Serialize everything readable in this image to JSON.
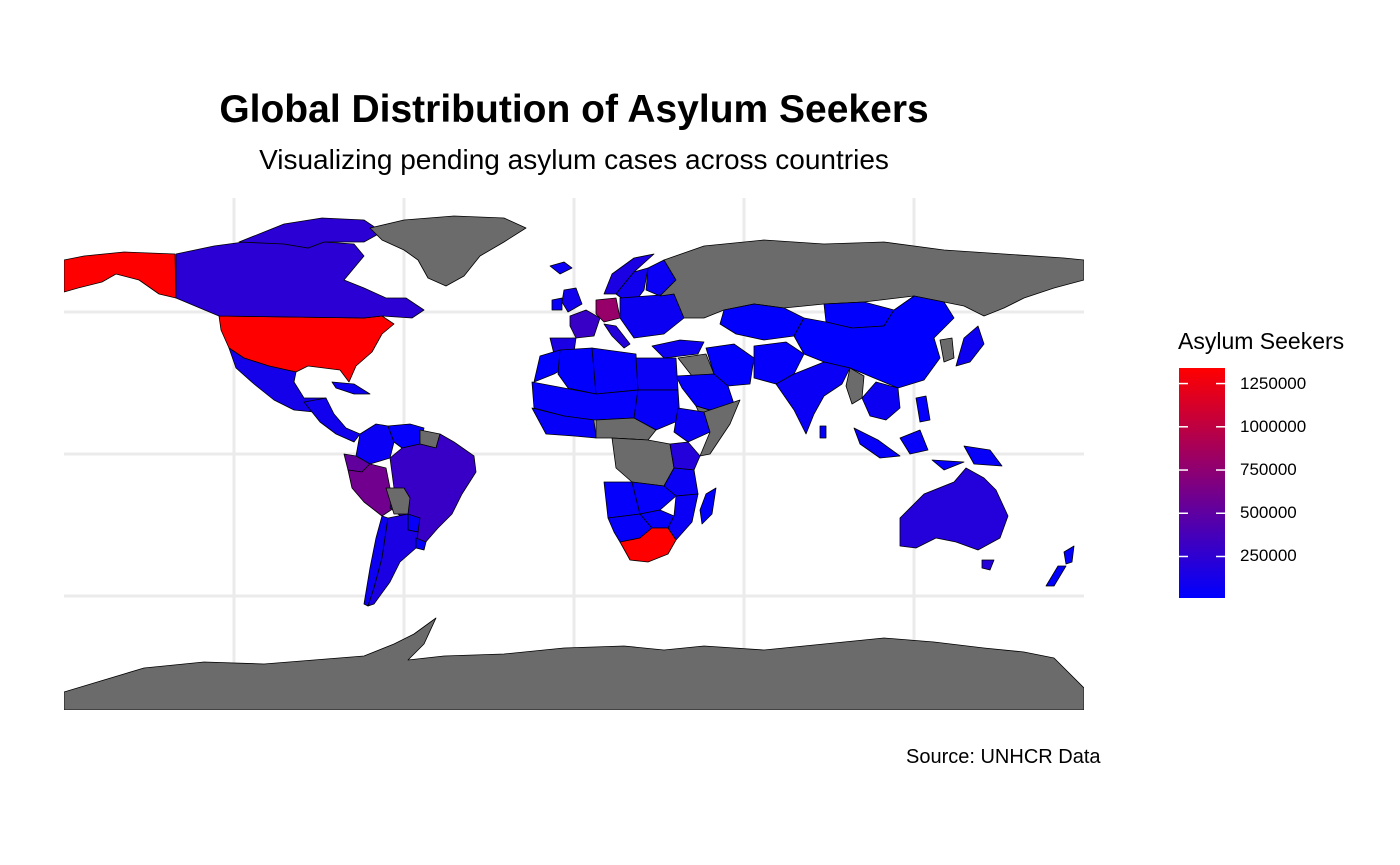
{
  "title": "Global Distribution of Asylum Seekers",
  "subtitle": "Visualizing pending asylum cases across countries",
  "caption": "Source: UNHCR Data",
  "legend": {
    "title": "Asylum Seekers",
    "ticks": [
      {
        "value": 1250000,
        "label": "1250000"
      },
      {
        "value": 1000000,
        "label": "1000000"
      },
      {
        "value": 750000,
        "label": "750000"
      },
      {
        "value": 500000,
        "label": "500000"
      },
      {
        "value": 250000,
        "label": "250000"
      }
    ],
    "range": [
      10000,
      1340000
    ],
    "low_color": "#0000ff",
    "high_color": "#ff0000",
    "na_color": "#6b6b6b"
  },
  "chart_data": {
    "type": "choropleth",
    "projection": "equirectangular",
    "lon_range": [
      -180,
      180
    ],
    "lat_range": [
      -90,
      84
    ],
    "grid": true,
    "legend_position": "right",
    "regions": [
      {
        "name": "Alaska (United States)",
        "value": 1340000
      },
      {
        "name": "United States",
        "value": 1340000
      },
      {
        "name": "Canada",
        "value": 230000
      },
      {
        "name": "Canadian Arctic",
        "value": 230000
      },
      {
        "name": "Greenland",
        "value": null
      },
      {
        "name": "Mexico",
        "value": 120000
      },
      {
        "name": "Central America",
        "value": 100000
      },
      {
        "name": "Cuba",
        "value": 70000
      },
      {
        "name": "Colombia",
        "value": 60000
      },
      {
        "name": "Venezuela",
        "value": 30000
      },
      {
        "name": "Guyana",
        "value": null
      },
      {
        "name": "Ecuador",
        "value": 520000
      },
      {
        "name": "Peru",
        "value": 600000
      },
      {
        "name": "Brazil",
        "value": 300000
      },
      {
        "name": "Bolivia",
        "value": null
      },
      {
        "name": "Paraguay",
        "value": 40000
      },
      {
        "name": "Chile",
        "value": 80000
      },
      {
        "name": "Argentina",
        "value": 150000
      },
      {
        "name": "Uruguay",
        "value": 30000
      },
      {
        "name": "Iceland",
        "value": 60000
      },
      {
        "name": "United Kingdom",
        "value": 100000
      },
      {
        "name": "Ireland",
        "value": 40000
      },
      {
        "name": "Norway",
        "value": 150000
      },
      {
        "name": "Sweden",
        "value": 100000
      },
      {
        "name": "Finland",
        "value": 60000
      },
      {
        "name": "France",
        "value": 300000
      },
      {
        "name": "Spain",
        "value": 150000
      },
      {
        "name": "Germany",
        "value": 800000
      },
      {
        "name": "Italy",
        "value": 200000
      },
      {
        "name": "Eastern Europe",
        "value": 70000
      },
      {
        "name": "Russia",
        "value": null
      },
      {
        "name": "Turkey",
        "value": 80000
      },
      {
        "name": "Syria & Iraq",
        "value": null
      },
      {
        "name": "Iran",
        "value": 20000
      },
      {
        "name": "Saudi Arabia",
        "value": 30000
      },
      {
        "name": "Yemen",
        "value": null
      },
      {
        "name": "Kazakhstan",
        "value": 20000
      },
      {
        "name": "Mongolia",
        "value": 20000
      },
      {
        "name": "China",
        "value": 10000
      },
      {
        "name": "Afghanistan & Pakistan",
        "value": 30000
      },
      {
        "name": "India",
        "value": 60000
      },
      {
        "name": "Myanmar",
        "value": null
      },
      {
        "name": "Indochina",
        "value": 70000
      },
      {
        "name": "Korea",
        "value": null
      },
      {
        "name": "Japan",
        "value": 80000
      },
      {
        "name": "Philippines",
        "value": 30000
      },
      {
        "name": "Indonesia",
        "value": 40000
      },
      {
        "name": "New Guinea",
        "value": 40000
      },
      {
        "name": "Sri Lanka",
        "value": 30000
      },
      {
        "name": "Morocco",
        "value": 20000
      },
      {
        "name": "Algeria",
        "value": 20000
      },
      {
        "name": "Libya",
        "value": 30000
      },
      {
        "name": "Egypt",
        "value": 60000
      },
      {
        "name": "Sahel",
        "value": 30000
      },
      {
        "name": "West Africa",
        "value": 40000
      },
      {
        "name": "Sudan",
        "value": 40000
      },
      {
        "name": "Ethiopia",
        "value": 60000
      },
      {
        "name": "Somalia",
        "value": null
      },
      {
        "name": "Central African Republic",
        "value": null
      },
      {
        "name": "DR Congo",
        "value": null
      },
      {
        "name": "Kenya & Uganda",
        "value": 200000
      },
      {
        "name": "Tanzania",
        "value": 60000
      },
      {
        "name": "Angola",
        "value": 30000
      },
      {
        "name": "Zambia",
        "value": 30000
      },
      {
        "name": "Mozambique",
        "value": 60000
      },
      {
        "name": "Namibia & Botswana",
        "value": 40000
      },
      {
        "name": "Zimbabwe",
        "value": 30000
      },
      {
        "name": "South Africa",
        "value": 1340000
      },
      {
        "name": "Madagascar",
        "value": 20000
      },
      {
        "name": "Australia",
        "value": 200000
      },
      {
        "name": "Tasmania",
        "value": 200000
      },
      {
        "name": "New Zealand",
        "value": 20000
      },
      {
        "name": "Antarctica",
        "value": null
      }
    ]
  }
}
